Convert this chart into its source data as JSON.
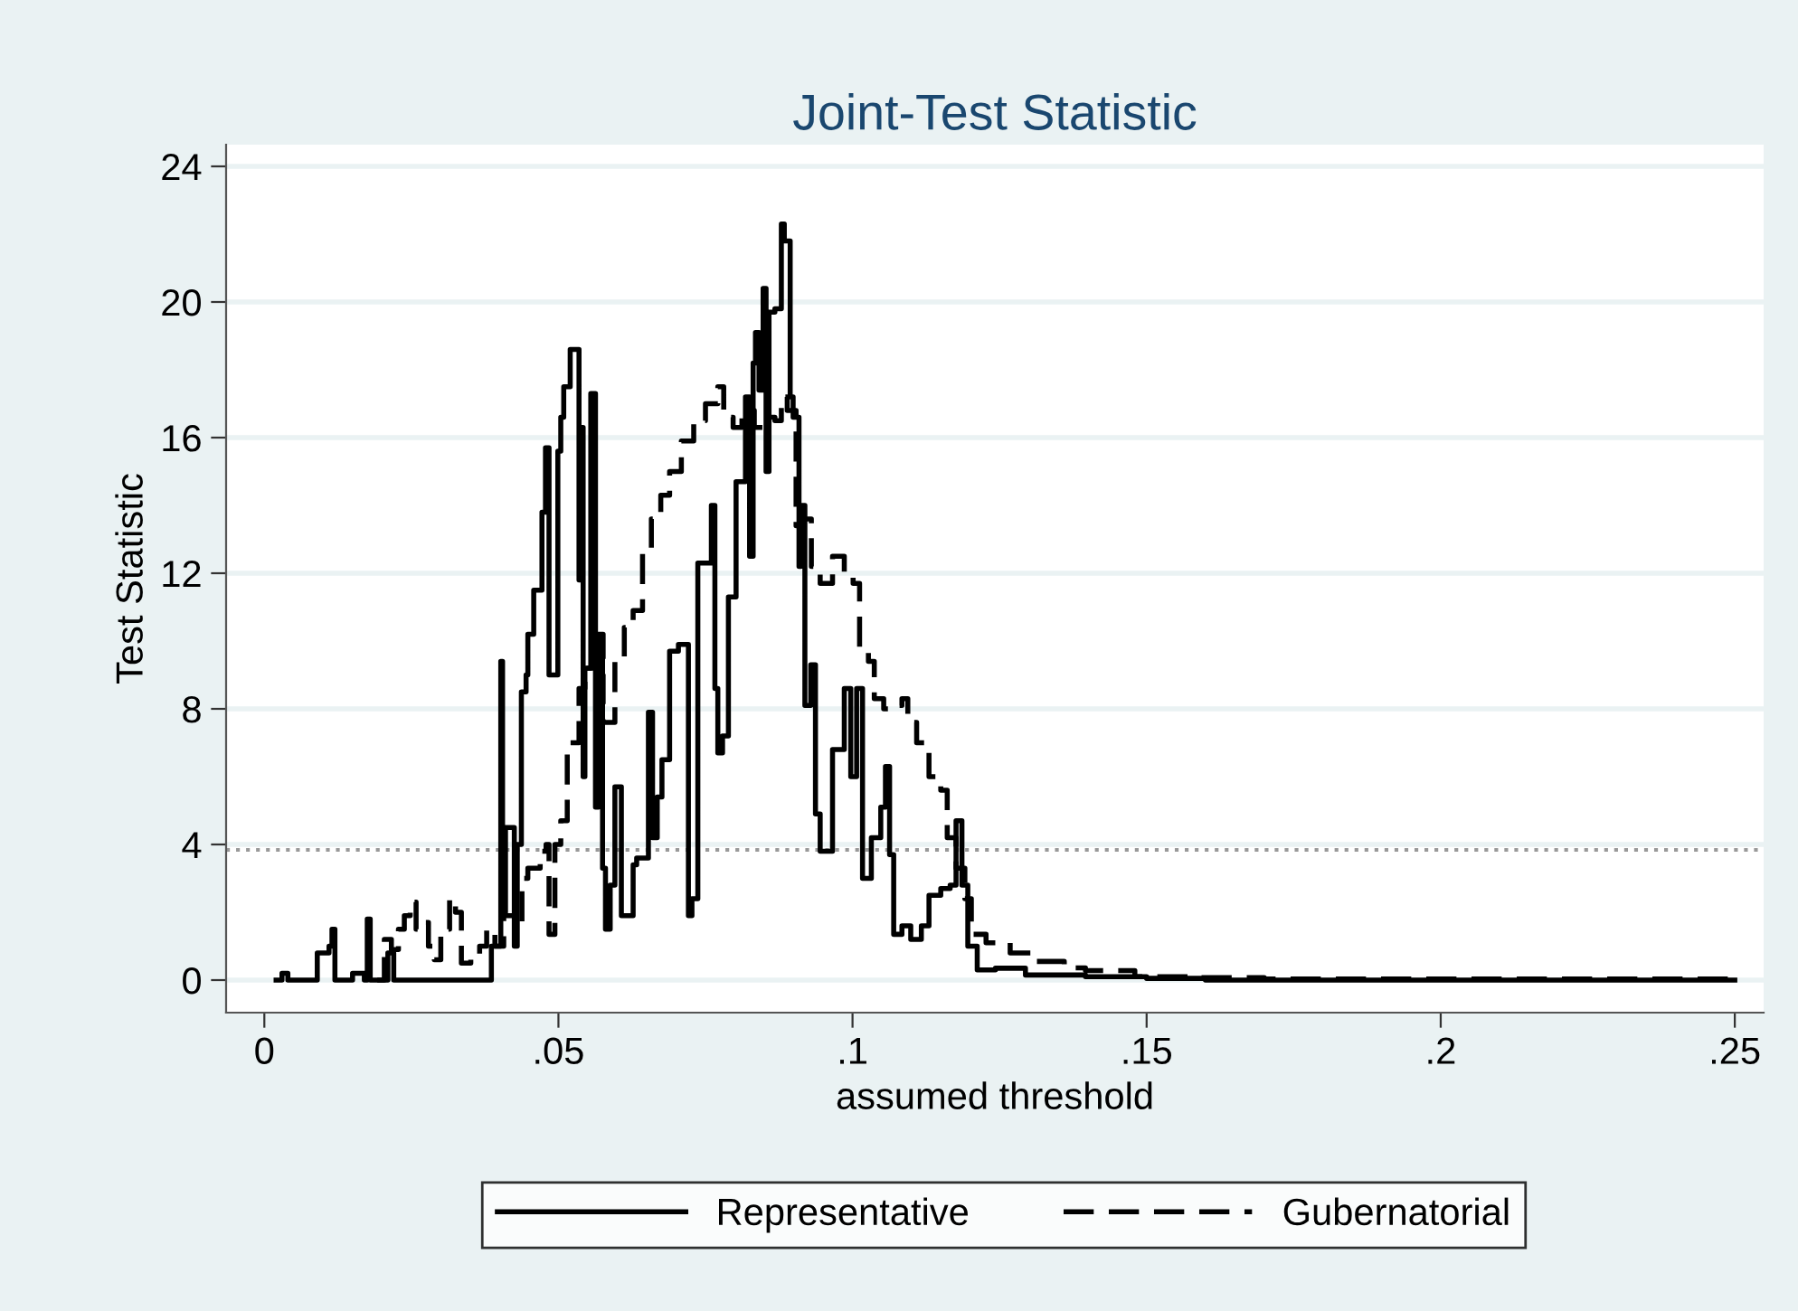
{
  "chart_data": {
    "type": "step",
    "title": "Joint-Test Statistic",
    "xlabel": "assumed threshold",
    "ylabel": "Test Statistic",
    "xlim": [
      -0.0065,
      0.2549
    ],
    "ylim": [
      -0.96,
      24.64
    ],
    "xticks": [
      0,
      {
        "value": 0.05,
        "label": ".05"
      },
      {
        "value": 0.1,
        "label": ".1"
      },
      {
        "value": 0.15,
        "label": ".15"
      },
      {
        "value": 0.2,
        "label": ".2"
      },
      {
        "value": 0.25,
        "label": ".25"
      }
    ],
    "yticks": [
      0,
      4,
      8,
      12,
      16,
      20,
      24
    ],
    "grid": "y",
    "legend": "bottom",
    "ref_lines": [
      {
        "axis": "y",
        "value": 3.84,
        "color": "#999999",
        "line_style": "dotted"
      }
    ],
    "series": [
      {
        "name": "Representative",
        "color": "#000000",
        "line_style": "solid",
        "x": [
          0.002,
          0.003,
          0.004,
          0.008,
          0.009,
          0.011,
          0.0115,
          0.012,
          0.015,
          0.017,
          0.0175,
          0.018,
          0.02,
          0.021,
          0.022,
          0.034,
          0.0386,
          0.0402,
          0.0405,
          0.041,
          0.0425,
          0.043,
          0.0437,
          0.0445,
          0.0448,
          0.0458,
          0.0472,
          0.0478,
          0.0484,
          0.0489,
          0.0499,
          0.0504,
          0.0509,
          0.052,
          0.0535,
          0.0537,
          0.0542,
          0.0545,
          0.0555,
          0.0563,
          0.0568,
          0.0575,
          0.058,
          0.0588,
          0.0596,
          0.0607,
          0.0615,
          0.0627,
          0.0633,
          0.0653,
          0.066,
          0.0668,
          0.0676,
          0.0689,
          0.0704,
          0.0721,
          0.0727,
          0.0737,
          0.0744,
          0.076,
          0.0766,
          0.0771,
          0.0779,
          0.0789,
          0.0802,
          0.0818,
          0.0825,
          0.0831,
          0.0835,
          0.0841,
          0.0848,
          0.0853,
          0.0858,
          0.0868,
          0.0879,
          0.0884,
          0.0894,
          0.0899,
          0.0909,
          0.0912,
          0.0919,
          0.0929,
          0.0937,
          0.0945,
          0.0966,
          0.0986,
          0.0997,
          0.1007,
          0.1017,
          0.1032,
          0.1048,
          0.1056,
          0.1063,
          0.107,
          0.1084,
          0.1099,
          0.1117,
          0.113,
          0.115,
          0.1166,
          0.1176,
          0.1186,
          0.1196,
          0.1212,
          0.1243,
          0.1294,
          0.1396,
          0.15,
          0.16,
          0.25
        ],
        "values": [
          0,
          0.2,
          0,
          0,
          0.8,
          1.0,
          1.5,
          0,
          0.2,
          0,
          1.8,
          0,
          0,
          0.8,
          0,
          0,
          1.0,
          9.4,
          2.0,
          4.5,
          1.0,
          4.0,
          8.5,
          9.0,
          10.2,
          11.5,
          13.8,
          15.7,
          9.0,
          9.0,
          15.6,
          16.6,
          17.5,
          18.6,
          11.8,
          16.3,
          6.0,
          9.2,
          17.3,
          5.1,
          10.1,
          3.3,
          1.5,
          2.8,
          5.7,
          1.9,
          1.9,
          3.4,
          3.6,
          7.9,
          4.2,
          5.4,
          6.5,
          9.7,
          9.9,
          1.9,
          2.4,
          12.3,
          12.3,
          14.0,
          8.6,
          6.7,
          7.2,
          11.3,
          14.7,
          17.2,
          12.5,
          18.2,
          19.1,
          17.4,
          20.4,
          15.0,
          19.7,
          19.8,
          22.3,
          21.8,
          17.2,
          16.6,
          12.2,
          14.0,
          8.1,
          9.3,
          4.9,
          3.8,
          6.8,
          8.6,
          6.0,
          8.6,
          3.0,
          4.2,
          5.1,
          6.3,
          3.7,
          1.35,
          1.6,
          1.2,
          1.6,
          2.5,
          2.7,
          2.8,
          4.7,
          2.8,
          1.0,
          0.3,
          0.35,
          0.15,
          0.1,
          0.05,
          0,
          0
        ]
      },
      {
        "name": "Gubernatorial",
        "color": "#000000",
        "line_style": "dashed",
        "x": [
          0.0192,
          0.0204,
          0.0216,
          0.0228,
          0.0238,
          0.0248,
          0.0258,
          0.0269,
          0.0279,
          0.0289,
          0.03,
          0.0315,
          0.0325,
          0.0335,
          0.0351,
          0.0366,
          0.0378,
          0.0392,
          0.0407,
          0.0427,
          0.0438,
          0.0448,
          0.0469,
          0.0479,
          0.0484,
          0.0494,
          0.0504,
          0.0515,
          0.0535,
          0.0545,
          0.0566,
          0.0576,
          0.0596,
          0.0612,
          0.0627,
          0.0643,
          0.0658,
          0.0674,
          0.0689,
          0.0709,
          0.073,
          0.075,
          0.0771,
          0.0781,
          0.0797,
          0.0812,
          0.0833,
          0.0853,
          0.0868,
          0.0879,
          0.0889,
          0.0904,
          0.0914,
          0.093,
          0.0945,
          0.0966,
          0.0986,
          0.1001,
          0.1012,
          0.1027,
          0.1037,
          0.1053,
          0.1068,
          0.1084,
          0.1094,
          0.1109,
          0.113,
          0.115,
          0.1161,
          0.1176,
          0.1191,
          0.1202,
          0.1227,
          0.1268,
          0.1309,
          0.136,
          0.1396,
          0.148,
          0.158,
          0.17,
          0.25
        ],
        "values": [
          0,
          1.2,
          0.9,
          1.5,
          1.9,
          2.3,
          1.5,
          1.7,
          1.0,
          0.6,
          1.5,
          2.4,
          2.0,
          0.5,
          0.7,
          1.0,
          1.5,
          1.0,
          1.9,
          1.5,
          3.0,
          3.3,
          3.8,
          4.0,
          1.35,
          4.0,
          4.7,
          7.0,
          8.6,
          9.2,
          10.2,
          7.6,
          9.5,
          10.4,
          10.9,
          12.7,
          13.6,
          14.3,
          15.0,
          15.9,
          16.5,
          17.0,
          17.5,
          16.6,
          16.3,
          16.8,
          16.3,
          16.6,
          16.5,
          17.2,
          16.8,
          13.4,
          13.6,
          12.2,
          11.7,
          12.5,
          11.9,
          11.7,
          9.7,
          9.4,
          8.3,
          8.0,
          8.1,
          8.3,
          7.6,
          7.0,
          6.0,
          5.6,
          4.2,
          3.3,
          2.4,
          1.35,
          1.1,
          0.8,
          0.55,
          0.36,
          0.28,
          0.1,
          0.07,
          0.03,
          0.03
        ]
      }
    ]
  }
}
